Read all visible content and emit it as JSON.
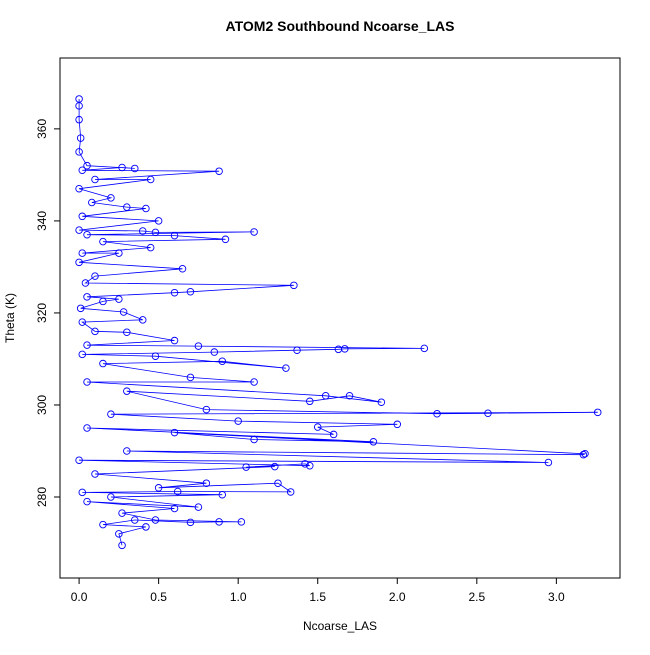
{
  "chart_data": {
    "type": "line",
    "title": "ATOM2 Southbound Ncoarse_LAS",
    "x_label": "Ncoarse_LAS",
    "y_label": "Theta (K)",
    "x": [
      0,
      0,
      0,
      0.01,
      0,
      0.05,
      0.35,
      0.27,
      0.02,
      0.88,
      0.1,
      0.45,
      0,
      0.2,
      0.08,
      0.3,
      0.42,
      0.02,
      0.5,
      0,
      0.4,
      0.48,
      1.1,
      0.05,
      0.6,
      0.92,
      0.15,
      0.45,
      0.02,
      0.25,
      0,
      0.65,
      0.1,
      0.04,
      1.35,
      0.7,
      0.6,
      0.05,
      0.25,
      0.15,
      0.01,
      0.28,
      0.4,
      0.02,
      0.1,
      0.3,
      0.6,
      0.05,
      0.75,
      2.17,
      1.67,
      1.63,
      1.37,
      0.85,
      0.02,
      0.48,
      1.3,
      0.9,
      0.15,
      0.7,
      1.1,
      0.05,
      1.55,
      1.9,
      1.7,
      1.45,
      0.3,
      0.8,
      2.25,
      2.57,
      3.26,
      0.2,
      1.0,
      2.0,
      1.5,
      1.6,
      0.05,
      1.85,
      1.1,
      0.6,
      3.18,
      3.17,
      0.3,
      2.95,
      0,
      1.45,
      1.42,
      1.05,
      1.23,
      0.1,
      0.8,
      0.5,
      1.25,
      1.33,
      0.62,
      0.02,
      0.9,
      0.2,
      0.75,
      0.05,
      0.6,
      0.27,
      0.48,
      1.02,
      0.88,
      0.7,
      0.35,
      0.15,
      0.42,
      0.25,
      0.27
    ],
    "series": [
      {
        "color": "#0000ff",
        "values": [
          366.5,
          365,
          362,
          358,
          355,
          352,
          351.4,
          351.6,
          351,
          350.8,
          349,
          349,
          347,
          345,
          344,
          343,
          342.7,
          341,
          340,
          338,
          337.8,
          337.5,
          337.6,
          337,
          336.8,
          336,
          335.5,
          334.2,
          333,
          333,
          331,
          329.6,
          328,
          326.5,
          326,
          324.6,
          324.4,
          323.5,
          323,
          322.5,
          321,
          320.2,
          318.5,
          318,
          316,
          315.8,
          314,
          313,
          312.8,
          312.3,
          312.2,
          312.1,
          311.9,
          311.5,
          311,
          310.6,
          308,
          309.5,
          309,
          306,
          305,
          305,
          302,
          300.6,
          302,
          300.8,
          303,
          299,
          298.1,
          298.2,
          298.4,
          298,
          296.5,
          295.8,
          295.2,
          293.6,
          295,
          292,
          292.5,
          294,
          289.4,
          289.2,
          290,
          287.5,
          288,
          286.8,
          287.2,
          286.5,
          286.6,
          285,
          283,
          282,
          283,
          281.1,
          281.2,
          281,
          280.5,
          280,
          277.8,
          279,
          277.5,
          276.5,
          275,
          274.6,
          274.6,
          274.5,
          275,
          274,
          273.5,
          272,
          269.5
        ]
      }
    ],
    "xlim": [
      -0.12,
      3.4
    ],
    "ylim": [
      262.4,
      375.4
    ],
    "xticks": [
      {
        "value": 0,
        "label": "0.0"
      },
      0.5,
      {
        "value": 1,
        "label": "1.0"
      },
      1.5,
      {
        "value": 2,
        "label": "2.0"
      },
      2.5,
      {
        "value": 3,
        "label": "3.0"
      }
    ],
    "yticks": [
      280,
      300,
      320,
      340,
      360
    ]
  }
}
